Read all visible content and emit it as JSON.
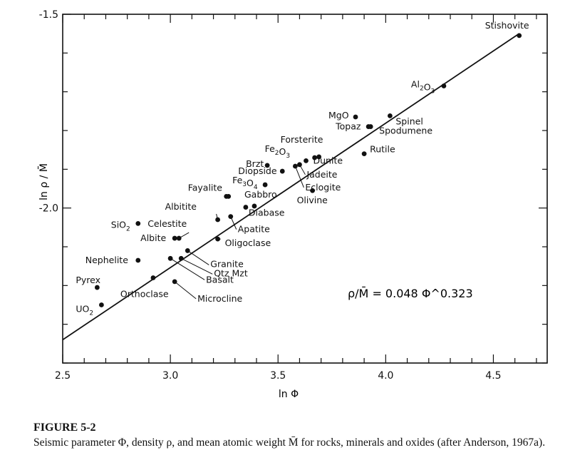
{
  "figure": {
    "label": "FIGURE 5-2",
    "caption": "Seismic parameter Φ, density ρ, and mean atomic weight M̄ for rocks, minerals and oxides (after Anderson, 1967a)."
  },
  "chart_data": {
    "type": "scatter",
    "title": "",
    "xlabel": "ln Φ",
    "ylabel": "ln ρ / M̄",
    "xlim": [
      2.5,
      4.75
    ],
    "ylim": [
      -2.4,
      -1.5
    ],
    "x_ticks": [
      2.5,
      3.0,
      3.5,
      4.0,
      4.5
    ],
    "x_tick_labels": [
      "2.5",
      "3.0",
      "3.5",
      "4.0",
      "4.5"
    ],
    "y_tick_labels_shown": [
      {
        "value": -1.5,
        "label": "-1.5"
      },
      {
        "value": -2.0,
        "label": "-2.0"
      }
    ],
    "grid": false,
    "equation_label": "ρ/M̄ = 0.048 Φ^0.323",
    "fit_line": {
      "x": [
        2.5,
        4.62
      ],
      "y": [
        -2.34,
        -1.55
      ]
    },
    "points": [
      {
        "label": "Stishovite",
        "x": 4.62,
        "y": -1.555
      },
      {
        "label": "Al2O3",
        "x": 4.27,
        "y": -1.685
      },
      {
        "label": "MgO",
        "x": 3.86,
        "y": -1.765
      },
      {
        "label": "Spinel",
        "x": 4.02,
        "y": -1.762
      },
      {
        "label": "Topaz",
        "x": 3.92,
        "y": -1.79
      },
      {
        "label": "Spodumene",
        "x": 3.93,
        "y": -1.79
      },
      {
        "label": "Rutile",
        "x": 3.9,
        "y": -1.86
      },
      {
        "label": "Forsterite",
        "x": 3.69,
        "y": -1.868
      },
      {
        "label": "Fe2O3",
        "x": 3.67,
        "y": -1.87
      },
      {
        "label": "Dunite",
        "x": 3.63,
        "y": -1.878
      },
      {
        "label": "Jadeite",
        "x": 3.6,
        "y": -1.888
      },
      {
        "label": "Eclogite",
        "x": 3.58,
        "y": -1.892
      },
      {
        "label": "Brzt",
        "x": 3.45,
        "y": -1.89
      },
      {
        "label": "Diopside",
        "x": 3.52,
        "y": -1.905
      },
      {
        "label": "Fe3O4",
        "x": 3.44,
        "y": -1.94
      },
      {
        "label": "Olivine",
        "x": 3.66,
        "y": -1.955
      },
      {
        "label": "Fayalite",
        "x": 3.26,
        "y": -1.97
      },
      {
        "label": "Fayalite",
        "x": 3.27,
        "y": -1.97
      },
      {
        "label": "Gabbro",
        "x": 3.39,
        "y": -1.995
      },
      {
        "label": "Diabase",
        "x": 3.35,
        "y": -1.998
      },
      {
        "label": "Albitite",
        "x": 3.22,
        "y": -2.03
      },
      {
        "label": "Apatite",
        "x": 3.28,
        "y": -2.022
      },
      {
        "label": "SiO2",
        "x": 2.85,
        "y": -2.04
      },
      {
        "label": "Celestite",
        "x": 3.04,
        "y": -2.078
      },
      {
        "label": "Albite",
        "x": 3.02,
        "y": -2.078
      },
      {
        "label": "Oligoclase",
        "x": 3.22,
        "y": -2.08
      },
      {
        "label": "Granite",
        "x": 3.08,
        "y": -2.11
      },
      {
        "label": "Qtz Mzt",
        "x": 3.05,
        "y": -2.13
      },
      {
        "label": "Nephelite",
        "x": 2.85,
        "y": -2.135
      },
      {
        "label": "Basalt",
        "x": 3.0,
        "y": -2.13
      },
      {
        "label": "Orthoclase",
        "x": 2.92,
        "y": -2.18
      },
      {
        "label": "Microcline",
        "x": 3.02,
        "y": -2.19
      },
      {
        "label": "Pyrex",
        "x": 2.66,
        "y": -2.205
      },
      {
        "label": "UO2",
        "x": 2.68,
        "y": -2.25
      }
    ]
  }
}
